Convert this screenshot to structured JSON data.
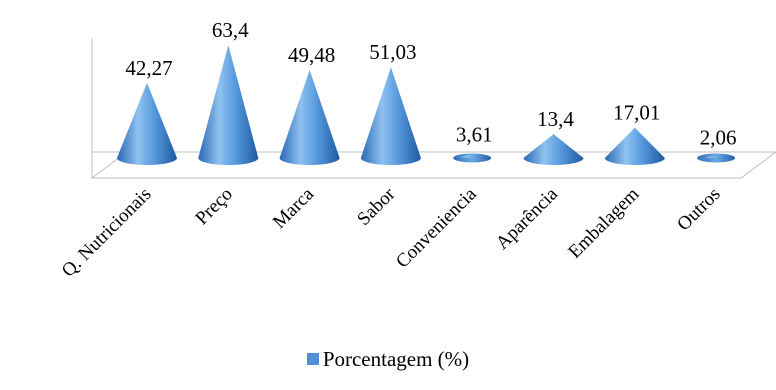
{
  "chart_data": {
    "type": "bar",
    "style": "3d-cone",
    "categories": [
      "Q. Nutricionais",
      "Preço",
      "Marca",
      "Sabor",
      "Conveniencia",
      "Aparência",
      "Embalagem",
      "Outros"
    ],
    "series": [
      {
        "name": "Porcentagem (%)",
        "values": [
          42.27,
          63.4,
          49.48,
          51.03,
          3.61,
          13.4,
          17.01,
          2.06
        ],
        "labels": [
          "42,27",
          "63,4",
          "49,48",
          "51,03",
          "3,61",
          "13,4",
          "17,01",
          "2,06"
        ]
      }
    ],
    "title": "",
    "xlabel": "",
    "ylabel": "",
    "grid": false,
    "legend_position": "bottom",
    "colors": {
      "cone": "#4f8fd6",
      "cone_dark": "#1f5fa8",
      "cone_light": "#9cc9f2",
      "floor": "#bfbfbf"
    }
  }
}
